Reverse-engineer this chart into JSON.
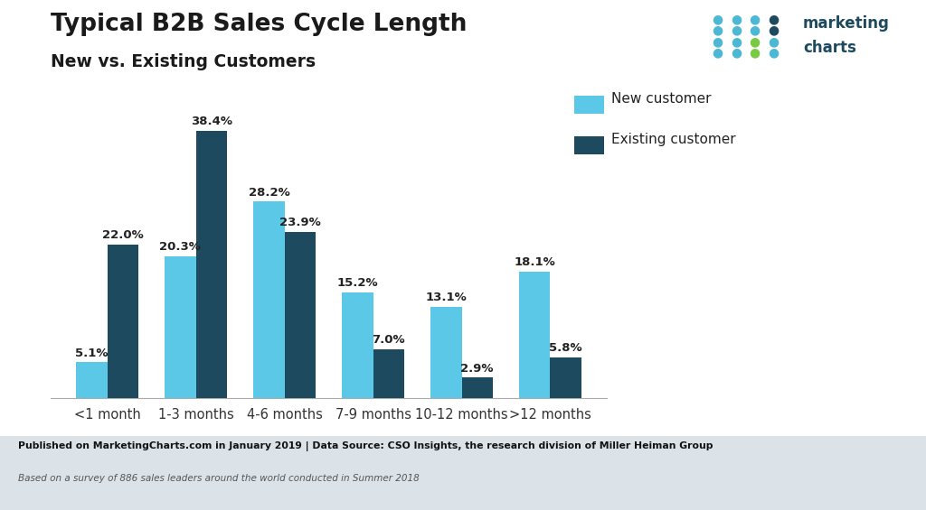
{
  "title_line1": "Typical B2B Sales Cycle Length",
  "title_line2": "New vs. Existing Customers",
  "categories": [
    "<1 month",
    "1-3 months",
    "4-6 months",
    "7-9 months",
    "10-12 months",
    ">12 months"
  ],
  "new_customer": [
    5.1,
    20.3,
    28.2,
    15.2,
    13.1,
    18.1
  ],
  "existing_customer": [
    22.0,
    38.4,
    23.9,
    7.0,
    2.9,
    5.8
  ],
  "new_color": "#5bc8e8",
  "existing_color": "#1d4a5e",
  "bg_color": "#ffffff",
  "footer_bg": "#dce3e8",
  "footer_text": "Published on MarketingCharts.com in January 2019 | Data Source: CSO Insights, the research division of Miller Heiman Group",
  "footer_text2": "Based on a survey of 886 sales leaders around the world conducted in Summer 2018",
  "legend_new": "New customer",
  "legend_existing": "Existing customer",
  "bar_width": 0.35,
  "ylim": [
    0,
    44
  ],
  "logo_dots": [
    [
      "#4db8d4",
      "#4db8d4",
      "#4db8d4",
      "#1d4a5e"
    ],
    [
      "#4db8d4",
      "#4db8d4",
      "#4db8d4",
      "#1d4a5e"
    ],
    [
      "#4db8d4",
      "#4db8d4",
      "#7ac943",
      "#4db8d4"
    ],
    [
      "#4db8d4",
      "#4db8d4",
      "#7ac943",
      "#4db8d4"
    ]
  ]
}
